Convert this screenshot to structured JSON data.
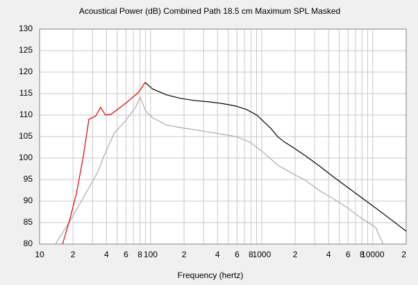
{
  "chart_data": {
    "type": "line",
    "title": "Acoustical Power (dB)   Combined   Path 18.5 cm   Maximum SPL   Masked",
    "xlabel": "Frequency (hertz)",
    "xscale": "log",
    "xlim": [
      10,
      20000
    ],
    "ylim": [
      80,
      130
    ],
    "xticks": [
      10,
      {
        "value": 20,
        "label": "2"
      },
      {
        "value": 40,
        "label": "4"
      },
      {
        "value": 60,
        "label": "6"
      },
      {
        "value": 80,
        "label": "8"
      },
      100,
      {
        "value": 200,
        "label": "2"
      },
      {
        "value": 400,
        "label": "4"
      },
      {
        "value": 600,
        "label": "6"
      },
      {
        "value": 800,
        "label": "8"
      },
      1000,
      {
        "value": 2000,
        "label": "2"
      },
      {
        "value": 4000,
        "label": "4"
      },
      {
        "value": 6000,
        "label": "6"
      },
      {
        "value": 8000,
        "label": "8"
      },
      10000,
      {
        "value": 20000,
        "label": "2"
      }
    ],
    "xminor": [
      30,
      50,
      70,
      90,
      300,
      500,
      700,
      900,
      3000,
      5000,
      7000,
      9000
    ],
    "yticks": [
      80,
      85,
      90,
      95,
      100,
      105,
      110,
      115,
      120,
      125,
      130
    ],
    "grid": true,
    "series": [
      {
        "color": "#aaaaaa",
        "x": [
          13.9,
          18.6,
          24.8,
          33,
          38,
          47,
          58.6,
          73,
          80.6,
          90,
          104,
          139,
          186,
          330,
          587,
          785,
          1040,
          1390,
          1860,
          2490,
          3330,
          4440,
          5940,
          7930,
          10600,
          12400
        ],
        "values": [
          80,
          85.2,
          90.8,
          96.5,
          100.5,
          105.8,
          108.5,
          111.8,
          114.2,
          111,
          109.4,
          107.7,
          107.1,
          106.1,
          105,
          103.7,
          101.3,
          98.4,
          96.5,
          94.8,
          92.4,
          90.5,
          88.4,
          86,
          83.9,
          80
        ]
      },
      {
        "color": "#000000",
        "x": [
          89,
          104,
          139,
          186,
          247,
          330,
          440,
          587,
          730,
          905,
          1040,
          1210,
          1390,
          1610,
          1860,
          2490,
          3330,
          4440,
          5940,
          7930,
          10600,
          14100,
          20000
        ],
        "values": [
          117.6,
          116.1,
          114.7,
          113.9,
          113.4,
          113.1,
          112.7,
          112.1,
          111.3,
          110,
          108.5,
          106.9,
          105,
          103.7,
          102.7,
          100.5,
          98.1,
          95.6,
          93.2,
          90.8,
          88.4,
          86,
          83
        ]
      },
      {
        "color": "#e00000",
        "x": [
          16.1,
          18.6,
          21.4,
          24.8,
          27.8,
          32,
          35.4,
          39.2,
          44,
          58.6,
          78,
          89
        ],
        "values": [
          80,
          85.5,
          91.6,
          100.5,
          109,
          109.8,
          111.8,
          110,
          110.2,
          112.6,
          115.3,
          117.6
        ]
      }
    ]
  }
}
